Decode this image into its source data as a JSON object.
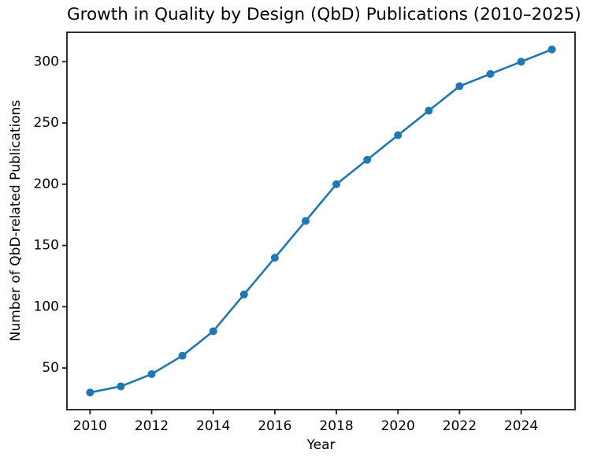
{
  "chart_data": {
    "type": "line",
    "title": "Growth in Quality by Design (QbD) Publications (2010–2025)",
    "xlabel": "Year",
    "ylabel": "Number of QbD-related Publications",
    "x": [
      2010,
      2011,
      2012,
      2013,
      2014,
      2015,
      2016,
      2017,
      2018,
      2019,
      2020,
      2021,
      2022,
      2023,
      2024,
      2025
    ],
    "y": [
      30,
      35,
      45,
      60,
      80,
      110,
      140,
      170,
      200,
      220,
      240,
      260,
      280,
      290,
      300,
      310
    ],
    "x_ticks": [
      2010,
      2012,
      2014,
      2016,
      2018,
      2020,
      2022,
      2024
    ],
    "y_ticks": [
      50,
      100,
      150,
      200,
      250,
      300
    ],
    "xlim": [
      2009.25,
      2025.75
    ],
    "ylim": [
      16,
      324
    ],
    "line_color": "#1f77b4",
    "marker": "circle",
    "marker_color": "#1f77b4",
    "axis_color": "#1a1a1a",
    "grid": false,
    "legend": "none"
  }
}
